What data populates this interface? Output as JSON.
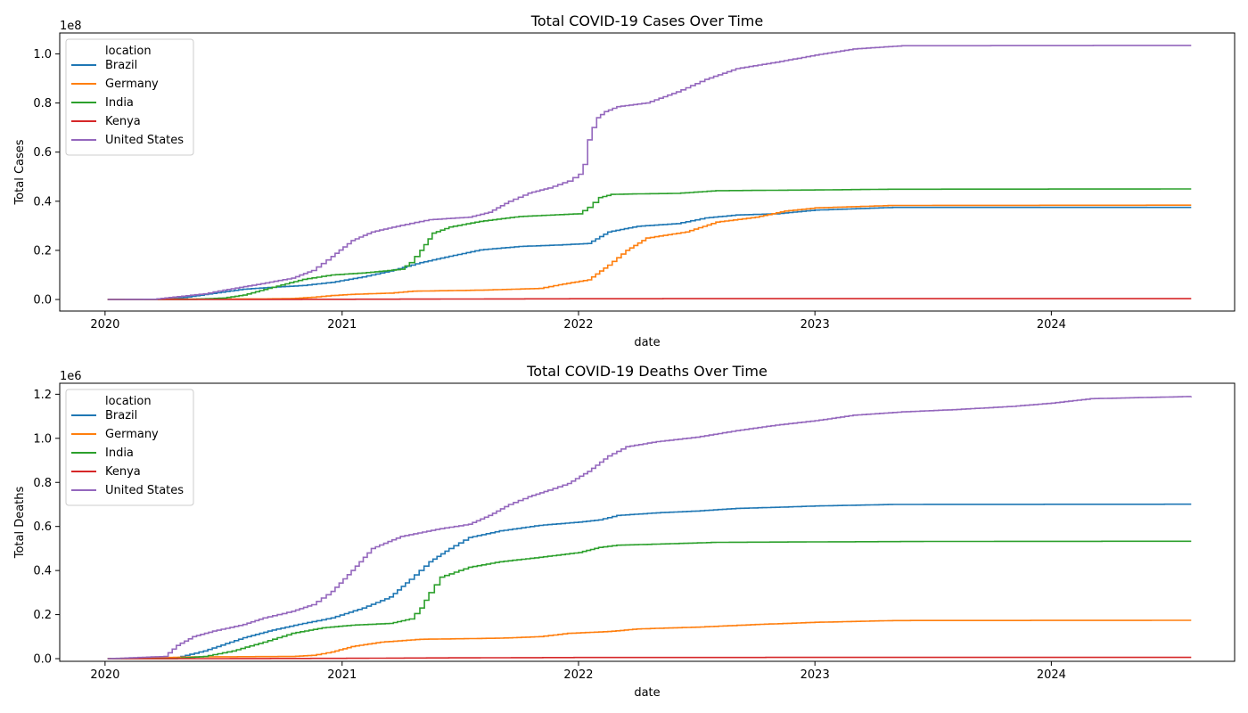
{
  "chart_data": [
    {
      "type": "line",
      "title": "Total COVID-19 Cases Over Time",
      "xlabel": "date",
      "ylabel": "Total Cases",
      "scale_label": "1e8",
      "scale": 100000000,
      "x_ticks": [
        "2020",
        "2021",
        "2022",
        "2023",
        "2024"
      ],
      "x_tick_values": [
        "2020-01-01",
        "2021-01-01",
        "2022-01-01",
        "2023-01-01",
        "2024-01-01"
      ],
      "xlim": [
        "2019-10-23",
        "2024-10-10"
      ],
      "y_ticks": [
        "0.0",
        "0.2",
        "0.4",
        "0.6",
        "0.8",
        "1.0"
      ],
      "y_tick_values": [
        0,
        20000000,
        40000000,
        60000000,
        80000000,
        100000000
      ],
      "ylim": [
        -4700000,
        108500000
      ],
      "legend_title": "location",
      "legend_position": "upper left",
      "series": [
        {
          "name": "Brazil",
          "color": "#1f77b4",
          "x": [
            "2020-01-05",
            "2020-03-15",
            "2020-05-01",
            "2020-06-15",
            "2020-08-01",
            "2020-09-15",
            "2020-11-01",
            "2020-12-15",
            "2021-02-01",
            "2021-03-15",
            "2021-05-01",
            "2021-06-15",
            "2021-08-01",
            "2021-10-01",
            "2021-12-01",
            "2022-01-15",
            "2022-02-15",
            "2022-04-01",
            "2022-06-01",
            "2022-07-15",
            "2022-09-01",
            "2022-11-01",
            "2023-01-01",
            "2023-05-01",
            "2024-08-04"
          ],
          "y": [
            0,
            10000,
            800000,
            2500000,
            4200000,
            5000000,
            5700000,
            7000000,
            9200000,
            11600000,
            15000000,
            17600000,
            20200000,
            21600000,
            22200000,
            22800000,
            27500000,
            29800000,
            30900000,
            33200000,
            34400000,
            34900000,
            36400000,
            37500000,
            37500000
          ]
        },
        {
          "name": "Germany",
          "color": "#ff7f0e",
          "x": [
            "2020-01-05",
            "2020-03-01",
            "2020-04-15",
            "2020-06-01",
            "2020-09-01",
            "2020-10-15",
            "2020-11-15",
            "2020-12-15",
            "2021-01-15",
            "2021-03-15",
            "2021-04-20",
            "2021-08-01",
            "2021-11-01",
            "2021-12-01",
            "2022-01-15",
            "2022-02-15",
            "2022-03-15",
            "2022-04-15",
            "2022-06-15",
            "2022-08-01",
            "2022-10-01",
            "2022-11-15",
            "2023-01-01",
            "2023-05-01",
            "2024-08-04"
          ],
          "y": [
            0,
            10000,
            150000,
            180000,
            250000,
            400000,
            900000,
            1600000,
            2100000,
            2600000,
            3400000,
            3800000,
            4500000,
            6000000,
            8000000,
            14000000,
            20000000,
            25000000,
            27500000,
            31500000,
            33500000,
            36000000,
            37300000,
            38300000,
            38400000
          ]
        },
        {
          "name": "India",
          "color": "#2ca02c",
          "x": [
            "2020-01-05",
            "2020-04-01",
            "2020-05-15",
            "2020-07-01",
            "2020-08-01",
            "2020-09-15",
            "2020-11-01",
            "2020-12-15",
            "2021-02-01",
            "2021-04-01",
            "2021-04-15",
            "2021-05-01",
            "2021-05-20",
            "2021-06-15",
            "2021-08-01",
            "2021-10-01",
            "2021-12-31",
            "2022-01-15",
            "2022-02-01",
            "2022-02-20",
            "2022-04-01",
            "2022-06-01",
            "2022-08-01",
            "2023-01-01",
            "2023-05-01",
            "2024-08-04"
          ],
          "y": [
            0,
            1000,
            100000,
            600000,
            1800000,
            5000000,
            8200000,
            10000000,
            10800000,
            12300000,
            15000000,
            20000000,
            27000000,
            29500000,
            31800000,
            33800000,
            34900000,
            37500000,
            41500000,
            42800000,
            43000000,
            43200000,
            44300000,
            44600000,
            44900000,
            45000000
          ]
        },
        {
          "name": "Kenya",
          "color": "#d62728",
          "x": [
            "2020-01-05",
            "2020-06-01",
            "2021-01-01",
            "2021-06-01",
            "2022-01-01",
            "2022-06-01",
            "2023-01-01",
            "2024-08-04"
          ],
          "y": [
            0,
            5000,
            100000,
            180000,
            300000,
            330000,
            340000,
            344000
          ]
        },
        {
          "name": "United States",
          "color": "#9467bd",
          "x": [
            "2020-01-05",
            "2020-03-15",
            "2020-04-15",
            "2020-06-01",
            "2020-07-01",
            "2020-08-15",
            "2020-10-15",
            "2020-11-15",
            "2020-12-15",
            "2021-01-15",
            "2021-02-15",
            "2021-04-01",
            "2021-05-15",
            "2021-07-15",
            "2021-08-15",
            "2021-09-15",
            "2021-10-15",
            "2021-11-15",
            "2021-12-15",
            "2022-01-01",
            "2022-01-08",
            "2022-01-15",
            "2022-01-22",
            "2022-01-29",
            "2022-02-10",
            "2022-03-01",
            "2022-04-15",
            "2022-06-01",
            "2022-07-15",
            "2022-09-01",
            "2022-11-01",
            "2023-01-01",
            "2023-03-01",
            "2023-05-15",
            "2024-08-04"
          ],
          "y": [
            0,
            100000,
            1000000,
            2300000,
            3800000,
            5800000,
            8700000,
            11800000,
            17500000,
            24000000,
            27500000,
            30200000,
            32500000,
            33500000,
            35500000,
            40000000,
            43300000,
            45400000,
            48200000,
            51000000,
            55000000,
            65000000,
            70000000,
            74000000,
            76500000,
            78500000,
            80000000,
            84500000,
            89600000,
            94000000,
            96600000,
            99500000,
            102000000,
            103300000,
            103400000
          ]
        }
      ]
    },
    {
      "type": "line",
      "title": "Total COVID-19 Deaths Over Time",
      "xlabel": "date",
      "ylabel": "Total Deaths",
      "scale_label": "1e6",
      "scale": 1000000,
      "x_ticks": [
        "2020",
        "2021",
        "2022",
        "2023",
        "2024"
      ],
      "x_tick_values": [
        "2020-01-01",
        "2021-01-01",
        "2022-01-01",
        "2023-01-01",
        "2024-01-01"
      ],
      "xlim": [
        "2019-10-23",
        "2024-10-10"
      ],
      "y_ticks": [
        "0.0",
        "0.2",
        "0.4",
        "0.6",
        "0.8",
        "1.0",
        "1.2"
      ],
      "y_tick_values": [
        0,
        200000,
        400000,
        600000,
        800000,
        1000000,
        1200000
      ],
      "ylim": [
        -12000,
        1250000
      ],
      "legend_title": "location",
      "legend_position": "upper left",
      "series": [
        {
          "name": "Brazil",
          "color": "#1f77b4",
          "x": [
            "2020-01-05",
            "2020-04-20",
            "2020-06-01",
            "2020-08-01",
            "2020-09-15",
            "2020-11-01",
            "2020-12-15",
            "2021-02-01",
            "2021-03-15",
            "2021-04-15",
            "2021-05-15",
            "2021-06-15",
            "2021-07-15",
            "2021-09-01",
            "2021-11-01",
            "2022-01-01",
            "2022-02-01",
            "2022-03-01",
            "2022-05-01",
            "2022-07-01",
            "2022-09-01",
            "2022-11-01",
            "2023-01-01",
            "2023-05-01",
            "2024-08-04"
          ],
          "y": [
            0,
            5000,
            35000,
            95000,
            130000,
            160000,
            185000,
            230000,
            280000,
            360000,
            440000,
            500000,
            550000,
            580000,
            605000,
            620000,
            630000,
            650000,
            662000,
            670000,
            682000,
            687000,
            693000,
            700000,
            701000
          ]
        },
        {
          "name": "Germany",
          "color": "#ff7f0e",
          "x": [
            "2020-01-05",
            "2020-04-01",
            "2020-05-15",
            "2020-10-15",
            "2020-11-15",
            "2020-12-15",
            "2021-01-15",
            "2021-03-01",
            "2021-05-01",
            "2021-09-01",
            "2021-11-01",
            "2021-12-15",
            "2022-02-15",
            "2022-04-01",
            "2022-07-01",
            "2022-10-01",
            "2023-01-01",
            "2023-05-01",
            "2024-08-04"
          ],
          "y": [
            0,
            5000,
            8000,
            10000,
            15000,
            30000,
            55000,
            75000,
            88000,
            93000,
            100000,
            115000,
            123000,
            135000,
            143000,
            155000,
            165000,
            173000,
            174000
          ]
        },
        {
          "name": "India",
          "color": "#2ca02c",
          "x": [
            "2020-01-05",
            "2020-04-15",
            "2020-06-01",
            "2020-07-15",
            "2020-09-01",
            "2020-10-15",
            "2020-12-01",
            "2021-01-15",
            "2021-03-15",
            "2021-04-15",
            "2021-05-01",
            "2021-05-15",
            "2021-06-01",
            "2021-07-15",
            "2021-09-01",
            "2021-11-01",
            "2022-01-01",
            "2022-02-01",
            "2022-03-01",
            "2022-05-01",
            "2022-08-01",
            "2023-01-01",
            "2023-07-01",
            "2024-08-04"
          ],
          "y": [
            0,
            500,
            10000,
            35000,
            75000,
            115000,
            140000,
            152000,
            160000,
            180000,
            230000,
            300000,
            370000,
            415000,
            440000,
            460000,
            482000,
            505000,
            515000,
            520000,
            528000,
            530000,
            532000,
            533000
          ]
        },
        {
          "name": "Kenya",
          "color": "#d62728",
          "x": [
            "2020-01-05",
            "2020-06-01",
            "2021-01-01",
            "2021-06-01",
            "2022-01-01",
            "2023-01-01",
            "2024-08-04"
          ],
          "y": [
            0,
            100,
            1500,
            3500,
            5300,
            5680,
            5700
          ]
        },
        {
          "name": "United States",
          "color": "#9467bd",
          "x": [
            "2020-01-05",
            "2020-04-01",
            "2020-04-20",
            "2020-05-15",
            "2020-06-15",
            "2020-08-01",
            "2020-09-01",
            "2020-10-15",
            "2020-11-15",
            "2020-12-15",
            "2021-01-15",
            "2021-02-15",
            "2021-04-01",
            "2021-06-01",
            "2021-07-15",
            "2021-08-15",
            "2021-09-15",
            "2021-10-15",
            "2021-11-15",
            "2021-12-15",
            "2022-01-15",
            "2022-02-15",
            "2022-03-15",
            "2022-05-01",
            "2022-07-01",
            "2022-09-01",
            "2022-11-01",
            "2023-01-01",
            "2023-03-01",
            "2023-05-15",
            "2023-08-01",
            "2023-11-01",
            "2024-01-01",
            "2024-03-01",
            "2024-08-04"
          ],
          "y": [
            0,
            10000,
            60000,
            100000,
            125000,
            155000,
            185000,
            215000,
            245000,
            305000,
            400000,
            500000,
            555000,
            590000,
            610000,
            650000,
            700000,
            735000,
            765000,
            795000,
            850000,
            920000,
            962000,
            985000,
            1005000,
            1035000,
            1060000,
            1080000,
            1105000,
            1120000,
            1130000,
            1145000,
            1160000,
            1180000,
            1190000
          ]
        }
      ]
    }
  ]
}
